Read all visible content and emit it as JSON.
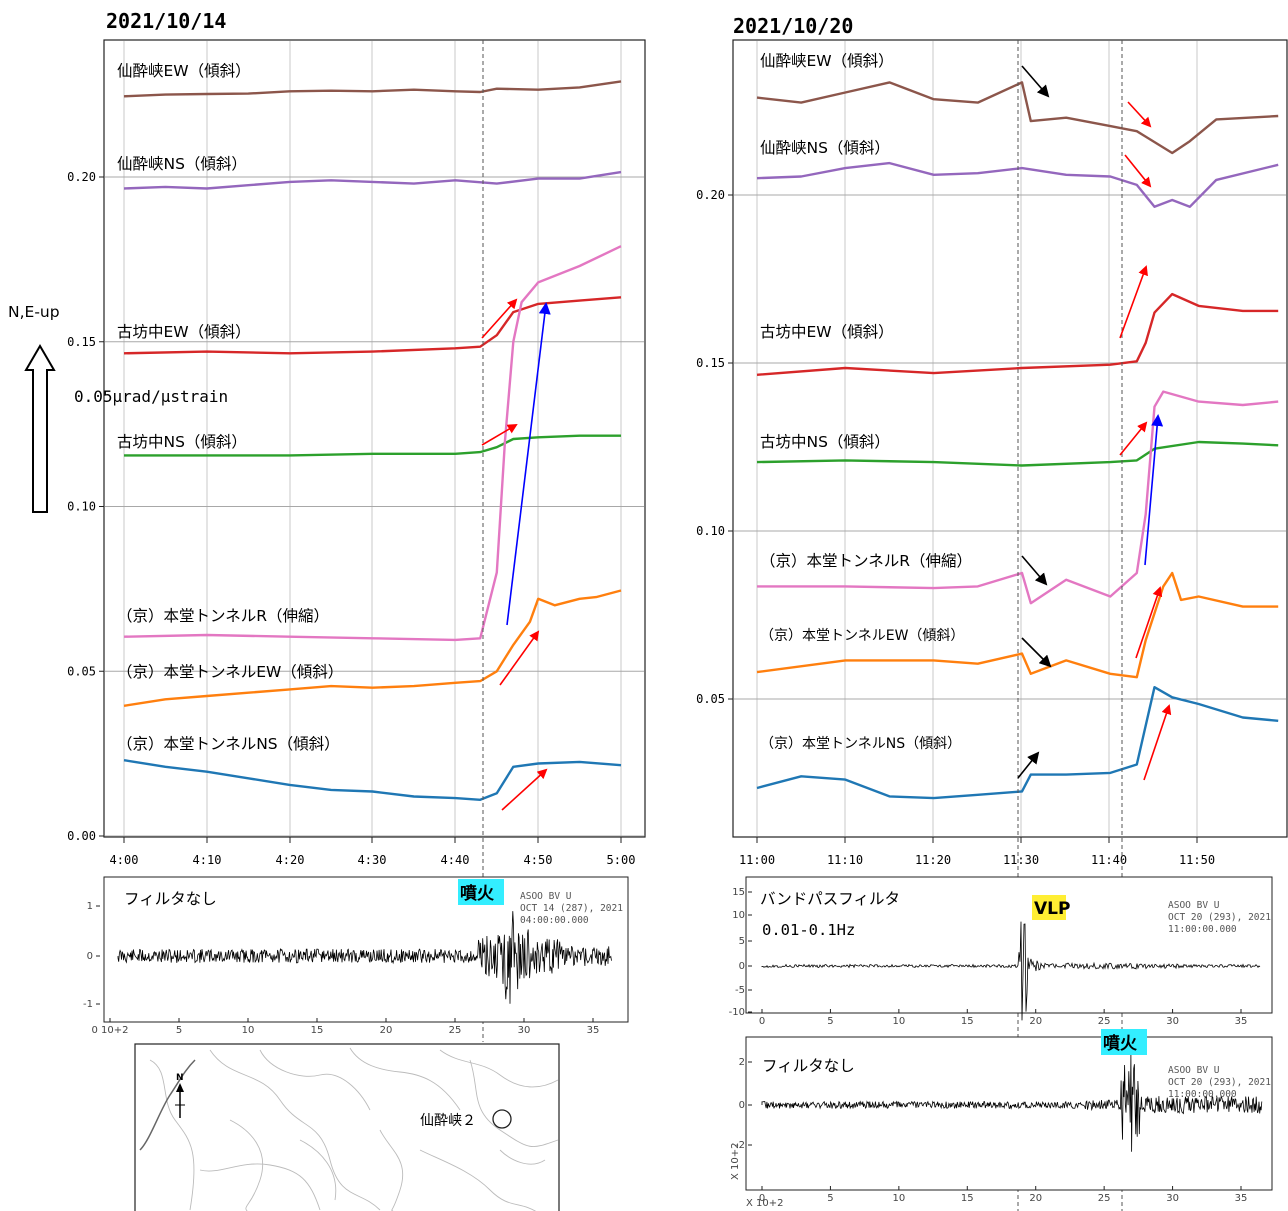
{
  "colors": {
    "brown": "#8c564b",
    "purple": "#9467bd",
    "red": "#d62728",
    "green": "#2ca02c",
    "pink": "#e377c2",
    "orange": "#ff7f0e",
    "blue": "#1f77b4",
    "arrow_red": "#ff0000",
    "arrow_blue": "#0000ff",
    "arrow_black": "#000000",
    "tag_cyan": "#33eeff",
    "tag_yellow": "#ffee33"
  },
  "legend": {
    "scale_label": "N,E-up",
    "scale_value": "0.05µrad/µstrain"
  },
  "panels": [
    {
      "date": "2021/10/14",
      "x_ticks": [
        "4:00",
        "4:10",
        "4:20",
        "4:30",
        "4:40",
        "4:50",
        "5:00"
      ],
      "y_ticks": [
        "0.00",
        "0.05",
        "0.10",
        "0.15",
        "0.20"
      ],
      "series_labels": [
        "仙酔峡EW（傾斜）",
        "仙酔峡NS（傾斜）",
        "古坊中EW（傾斜）",
        "古坊中NS（傾斜）",
        "（京）本堂トンネルR（伸縮）",
        "（京）本堂トンネルEW（傾斜）",
        "（京）本堂トンネルNS（傾斜）"
      ],
      "seismograms": [
        {
          "label": "フィルタなし",
          "tag": "噴火",
          "header": [
            "ASOO BV U",
            "OCT 14 (287), 2021",
            "04:00:00.000"
          ],
          "y_ticks": [
            "1",
            "0",
            "-1"
          ],
          "x_ticks": [
            "0 10+2",
            "5",
            "10",
            "15",
            "20",
            "25",
            "30",
            "35"
          ]
        }
      ],
      "map": {
        "station_label": "仙酔峡２",
        "north": "N"
      }
    },
    {
      "date": "2021/10/20",
      "x_ticks": [
        "11:00",
        "11:10",
        "11:20",
        "11:30",
        "11:40",
        "11:50"
      ],
      "y_ticks": [
        "0.05",
        "0.10",
        "0.15",
        "0.20"
      ],
      "series_labels": [
        "仙酔峡EW（傾斜）",
        "仙酔峡NS（傾斜）",
        "古坊中EW（傾斜）",
        "古坊中NS（傾斜）",
        "（京）本堂トンネルR（伸縮）",
        "（京）本堂トンネルEW（傾斜）",
        "（京）本堂トンネルNS（傾斜）"
      ],
      "seismograms": [
        {
          "label": "バンドパスフィルタ",
          "label2": "0.01-0.1Hz",
          "tag": "VLP",
          "header": [
            "ASOO BV U",
            "OCT 20 (293), 2021",
            "11:00:00.000"
          ],
          "y_ticks": [
            "15",
            "10",
            "5",
            "0",
            "-5",
            "-10"
          ],
          "x_ticks": [
            "0",
            "5",
            "10",
            "15",
            "20",
            "25",
            "30",
            "35"
          ]
        },
        {
          "label": "フィルタなし",
          "tag": "噴火",
          "header": [
            "ASOO BV U",
            "OCT 20 (293), 2021",
            "11:00:00.000"
          ],
          "y_ticks": [
            "2",
            "0",
            "-2"
          ],
          "x_ticks": [
            "0",
            "5",
            "10",
            "15",
            "20",
            "25",
            "30",
            "35"
          ],
          "x_unit": "X 10+2",
          "y_unit": "X 10+2"
        }
      ]
    }
  ],
  "chart_data": [
    {
      "type": "line",
      "x_range": [
        "4:00",
        "5:00"
      ],
      "ylim": [
        0,
        0.2
      ],
      "event_time": "4:43",
      "series": [
        {
          "name": "仙酔峡EW（傾斜）",
          "color_key": "brown",
          "x": [
            "4:00",
            "4:05",
            "4:10",
            "4:15",
            "4:20",
            "4:25",
            "4:30",
            "4:35",
            "4:40",
            "4:43",
            "4:45",
            "4:50",
            "4:55",
            "5:00"
          ],
          "values": [
            0.2245,
            0.225,
            0.2252,
            0.2253,
            0.226,
            0.2262,
            0.226,
            0.2265,
            0.226,
            0.2258,
            0.2268,
            0.2265,
            0.2272,
            0.229
          ]
        },
        {
          "name": "仙酔峡NS（傾斜）",
          "color_key": "purple",
          "x": [
            "4:00",
            "4:05",
            "4:10",
            "4:15",
            "4:20",
            "4:25",
            "4:30",
            "4:35",
            "4:40",
            "4:45",
            "4:50",
            "4:55",
            "5:00"
          ],
          "values": [
            0.1965,
            0.197,
            0.1965,
            0.1975,
            0.1985,
            0.199,
            0.1985,
            0.198,
            0.199,
            0.198,
            0.1995,
            0.1995,
            0.2015
          ]
        },
        {
          "name": "古坊中EW（傾斜）",
          "color_key": "red",
          "x": [
            "4:00",
            "4:10",
            "4:20",
            "4:30",
            "4:40",
            "4:43",
            "4:45",
            "4:47",
            "4:50",
            "4:55",
            "5:00"
          ],
          "values": [
            0.1465,
            0.147,
            0.1465,
            0.147,
            0.148,
            0.1485,
            0.152,
            0.159,
            0.1615,
            0.1625,
            0.1635
          ]
        },
        {
          "name": "古坊中NS（傾斜）",
          "color_key": "green",
          "x": [
            "4:00",
            "4:10",
            "4:20",
            "4:30",
            "4:40",
            "4:43",
            "4:45",
            "4:47",
            "4:50",
            "4:55",
            "5:00"
          ],
          "values": [
            0.1155,
            0.1155,
            0.1155,
            0.116,
            0.116,
            0.1165,
            0.118,
            0.1205,
            0.121,
            0.1215,
            0.1215
          ]
        },
        {
          "name": "（京）本堂トンネルR（伸縮）",
          "color_key": "pink",
          "x": [
            "4:00",
            "4:10",
            "4:20",
            "4:30",
            "4:40",
            "4:43",
            "4:45",
            "4:46",
            "4:47",
            "4:48",
            "4:50",
            "4:55",
            "5:00"
          ],
          "values": [
            0.0605,
            0.061,
            0.0605,
            0.06,
            0.0595,
            0.06,
            0.08,
            0.12,
            0.15,
            0.162,
            0.168,
            0.173,
            0.179
          ]
        },
        {
          "name": "（京）本堂トンネルEW（傾斜）",
          "color_key": "orange",
          "x": [
            "4:00",
            "4:05",
            "4:10",
            "4:15",
            "4:20",
            "4:25",
            "4:30",
            "4:35",
            "4:40",
            "4:43",
            "4:45",
            "4:47",
            "4:49",
            "4:50",
            "4:52",
            "4:55",
            "4:57",
            "5:00"
          ],
          "values": [
            0.0395,
            0.0415,
            0.0425,
            0.0435,
            0.0445,
            0.0455,
            0.045,
            0.0455,
            0.0465,
            0.047,
            0.05,
            0.058,
            0.065,
            0.072,
            0.07,
            0.072,
            0.0725,
            0.0745
          ]
        },
        {
          "name": "（京）本堂トンネルNS（傾斜）",
          "color_key": "blue",
          "x": [
            "4:00",
            "4:05",
            "4:10",
            "4:15",
            "4:20",
            "4:25",
            "4:30",
            "4:35",
            "4:40",
            "4:43",
            "4:45",
            "4:47",
            "4:50",
            "4:55",
            "5:00"
          ],
          "values": [
            0.023,
            0.021,
            0.0195,
            0.0175,
            0.0155,
            0.014,
            0.0135,
            0.012,
            0.0115,
            0.011,
            0.013,
            0.021,
            0.022,
            0.0225,
            0.0215
          ]
        }
      ]
    },
    {
      "type": "line",
      "x_range": [
        "11:00",
        "11:59"
      ],
      "ylim": [
        0,
        0.2
      ],
      "event_times": [
        "11:30",
        "11:43"
      ],
      "series": [
        {
          "name": "仙酔峡EW（傾斜）",
          "color_key": "brown",
          "x": [
            "11:00",
            "11:05",
            "11:10",
            "11:15",
            "11:20",
            "11:25",
            "11:30",
            "11:31",
            "11:35",
            "11:40",
            "11:43",
            "11:47",
            "11:49",
            "11:52",
            "11:59"
          ],
          "values": [
            0.229,
            0.2275,
            0.2305,
            0.2335,
            0.2285,
            0.2275,
            0.2335,
            0.222,
            0.223,
            0.2205,
            0.219,
            0.2125,
            0.216,
            0.2225,
            0.2235
          ]
        },
        {
          "name": "仙酔峡NS（傾斜）",
          "color_key": "purple",
          "x": [
            "11:00",
            "11:05",
            "11:10",
            "11:15",
            "11:20",
            "11:25",
            "11:30",
            "11:35",
            "11:40",
            "11:43",
            "11:45",
            "11:47",
            "11:49",
            "11:52",
            "11:59"
          ],
          "values": [
            0.205,
            0.2055,
            0.208,
            0.2095,
            0.206,
            0.2065,
            0.208,
            0.206,
            0.2055,
            0.203,
            0.1965,
            0.1985,
            0.1965,
            0.2045,
            0.209
          ]
        },
        {
          "name": "古坊中EW（傾斜）",
          "color_key": "red",
          "x": [
            "11:00",
            "11:10",
            "11:20",
            "11:30",
            "11:40",
            "11:43",
            "11:44",
            "11:45",
            "11:47",
            "11:50",
            "11:55",
            "11:59"
          ],
          "values": [
            0.1465,
            0.1485,
            0.147,
            0.1485,
            0.1495,
            0.1505,
            0.156,
            0.165,
            0.1705,
            0.167,
            0.1655,
            0.1655
          ]
        },
        {
          "name": "古坊中NS（傾斜）",
          "color_key": "green",
          "x": [
            "11:00",
            "11:10",
            "11:20",
            "11:30",
            "11:40",
            "11:43",
            "11:45",
            "11:50",
            "11:55",
            "11:59"
          ],
          "values": [
            0.1205,
            0.121,
            0.1205,
            0.1195,
            0.1205,
            0.121,
            0.1245,
            0.1265,
            0.126,
            0.1255
          ]
        },
        {
          "name": "（京）本堂トンネルR（伸縮）",
          "color_key": "pink",
          "x": [
            "11:00",
            "11:10",
            "11:20",
            "11:25",
            "11:30",
            "11:31",
            "11:35",
            "11:40",
            "11:43",
            "11:44",
            "11:45",
            "11:46",
            "11:50",
            "11:55",
            "11:59"
          ],
          "values": [
            0.0835,
            0.0835,
            0.083,
            0.0835,
            0.0875,
            0.0785,
            0.0855,
            0.0805,
            0.0875,
            0.105,
            0.137,
            0.1415,
            0.1385,
            0.1375,
            0.1385
          ]
        },
        {
          "name": "（京）本堂トンネルEW（傾斜）",
          "color_key": "orange",
          "x": [
            "11:00",
            "11:10",
            "11:20",
            "11:25",
            "11:30",
            "11:31",
            "11:35",
            "11:40",
            "11:43",
            "11:44",
            "11:46",
            "11:47",
            "11:48",
            "11:50",
            "11:55",
            "11:59"
          ],
          "values": [
            0.058,
            0.0615,
            0.0615,
            0.0605,
            0.0635,
            0.0575,
            0.0615,
            0.0575,
            0.0565,
            0.0675,
            0.0835,
            0.0875,
            0.0795,
            0.0805,
            0.0775,
            0.0775
          ]
        },
        {
          "name": "（京）本堂トンネルNS（傾斜）",
          "color_key": "blue",
          "x": [
            "11:00",
            "11:05",
            "11:10",
            "11:15",
            "11:20",
            "11:25",
            "11:30",
            "11:31",
            "11:35",
            "11:40",
            "11:43",
            "11:45",
            "11:47",
            "11:50",
            "11:55",
            "11:59"
          ],
          "values": [
            0.0235,
            0.027,
            0.026,
            0.021,
            0.0205,
            0.0215,
            0.0225,
            0.0275,
            0.0275,
            0.028,
            0.0305,
            0.0535,
            0.0505,
            0.0485,
            0.0445,
            0.0435
          ]
        }
      ]
    }
  ]
}
